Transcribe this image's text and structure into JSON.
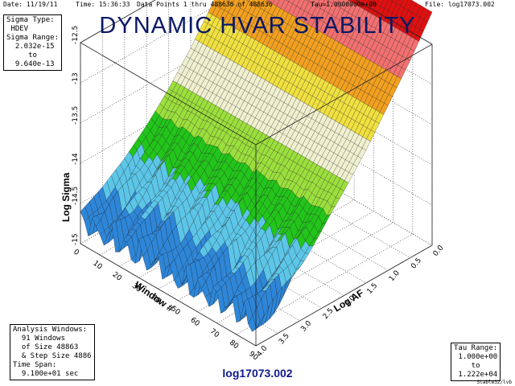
{
  "header": {
    "date": "Date: 11/19/11",
    "time": "Time: 15:36:33",
    "points": "Data Points 1 thru 488636 of 488636",
    "tau": "Tau=1.0000000e+00",
    "file": "File: log17073.002"
  },
  "title": "DYNAMIC HVAR STABILITY",
  "sigma_box": {
    "l1": "Sigma Type:",
    "l2": " HDEV",
    "l3": "Sigma Range:",
    "l4": "  2.032e-15",
    "l5": "     to",
    "l6": "  9.640e-13"
  },
  "analysis_box": {
    "l1": "Analysis Windows:",
    "l2": "  91 Windows",
    "l3": "  of Size 48863",
    "l4": "  & Step Size 4886",
    "l5": "Time Span:",
    "l6": "  9.100e+01 sec"
  },
  "tau_box": {
    "l1": "Tau Range:",
    "l2": " 1.000e+00",
    "l3": "    to",
    "l4": " 1.222e+04"
  },
  "filename": "log17073.002",
  "program": "Stable32/lvb",
  "chart_data": {
    "type": "surface",
    "title": "DYNAMIC HVAR STABILITY",
    "xlabel": "Log AF",
    "ylabel": "Window #",
    "zlabel": "Log Sigma",
    "log_af_ticks": [
      "0.0",
      "0.5",
      "1.0",
      "1.5",
      "2.0",
      "2.5",
      "3.0",
      "3.5",
      "4.0"
    ],
    "window_ticks": [
      "0",
      "10",
      "20",
      "30",
      "40",
      "50",
      "60",
      "70",
      "80",
      "90"
    ],
    "log_sigma_ticks": [
      "-15",
      "-14.5",
      "-14",
      "-13.5",
      "-13",
      "-12.5"
    ],
    "log_af_range": [
      0.0,
      4.0
    ],
    "window_range": [
      0,
      90
    ],
    "log_sigma_range": [
      -15.0,
      -12.5
    ],
    "sigma_profile": {
      "log_af": [
        0.0,
        0.5,
        1.0,
        1.5,
        2.0,
        2.5,
        3.0,
        3.5,
        4.0
      ],
      "log_sigma": [
        -12.1,
        -12.55,
        -12.95,
        -13.35,
        -13.7,
        -14.0,
        -14.25,
        -14.45,
        -14.6
      ]
    },
    "color_scale": [
      "#2e86d8",
      "#5cc6e8",
      "#22c51a",
      "#9bdf3c",
      "#f0f0d0",
      "#f0e040",
      "#f2a020",
      "#f27070",
      "#e01010"
    ],
    "grid": true
  }
}
